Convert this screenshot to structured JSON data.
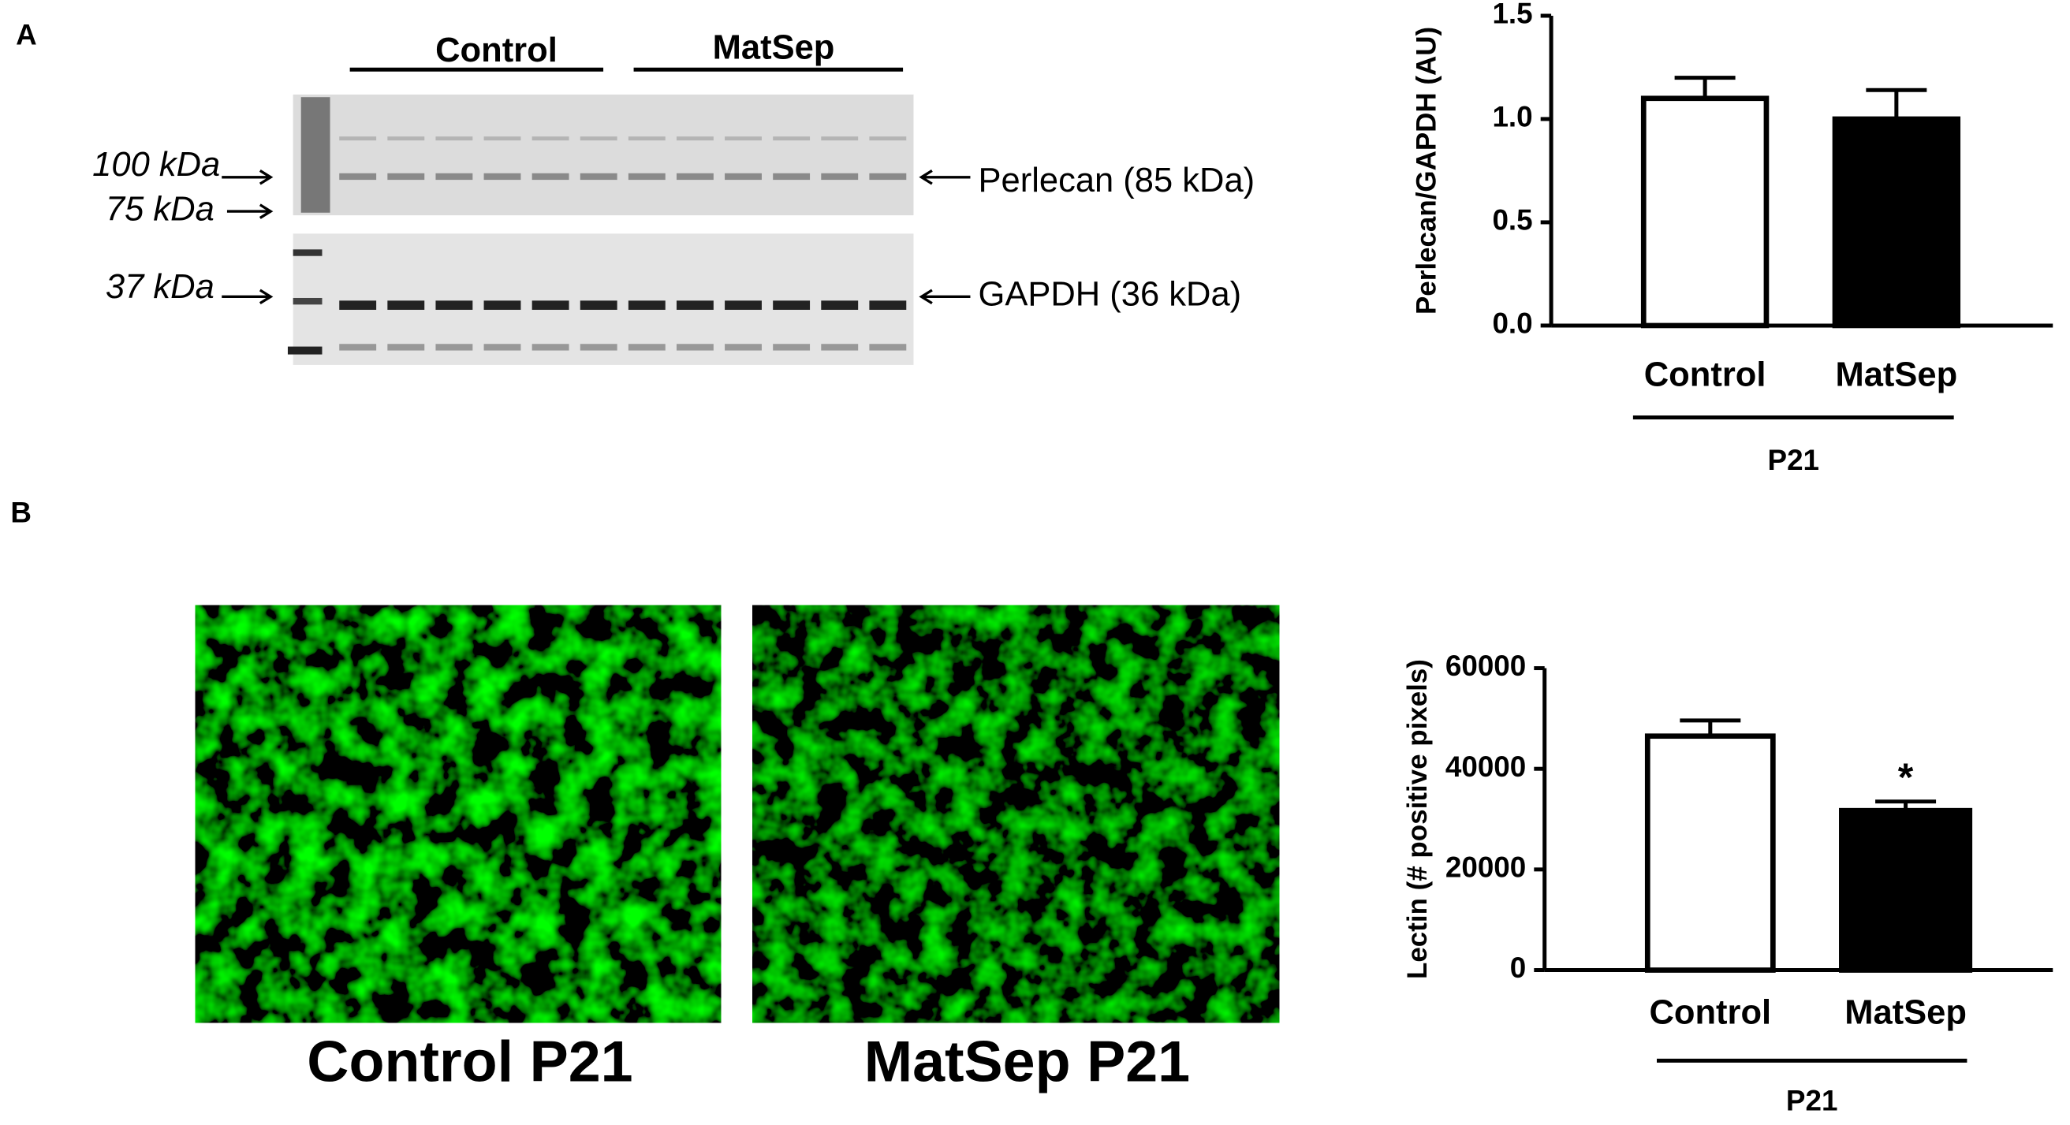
{
  "panel_labels": [
    "A",
    "B"
  ],
  "blot": {
    "groups": [
      "Control",
      "MatSep"
    ],
    "markers": [
      "100 kDa",
      "75 kDa",
      "37 kDa"
    ],
    "bands": [
      "Perlecan (85 kDa)",
      "GAPDH (36 kDa)"
    ]
  },
  "images": {
    "captions": [
      "Control P21",
      "MatSep P21"
    ]
  },
  "chart_data": [
    {
      "type": "bar",
      "ylabel": "Perlecan/GAPDH (AU)",
      "group_label": "P21",
      "categories": [
        "Control",
        "MatSep"
      ],
      "values": [
        1.1,
        1.0
      ],
      "errors": [
        0.1,
        0.14
      ],
      "colors": [
        "#ffffff",
        "#000000"
      ],
      "edgecolor": "#000000",
      "ylim": [
        0,
        1.5
      ],
      "yticks": [
        {
          "value": 0,
          "label": "0.0"
        },
        0.5,
        {
          "value": 1,
          "label": "1.0"
        },
        1.5
      ]
    },
    {
      "type": "bar",
      "ylabel": "Lectin (# positive pixels)",
      "group_label": "P21",
      "categories": [
        "Control",
        "MatSep"
      ],
      "values": [
        46500,
        31700
      ],
      "errors": [
        3100,
        1800
      ],
      "colors": [
        "#ffffff",
        "#000000"
      ],
      "edgecolor": "#000000",
      "annotation": "*",
      "ylim": [
        0,
        60000
      ],
      "yticks": [
        0,
        20000,
        40000,
        60000
      ]
    }
  ]
}
